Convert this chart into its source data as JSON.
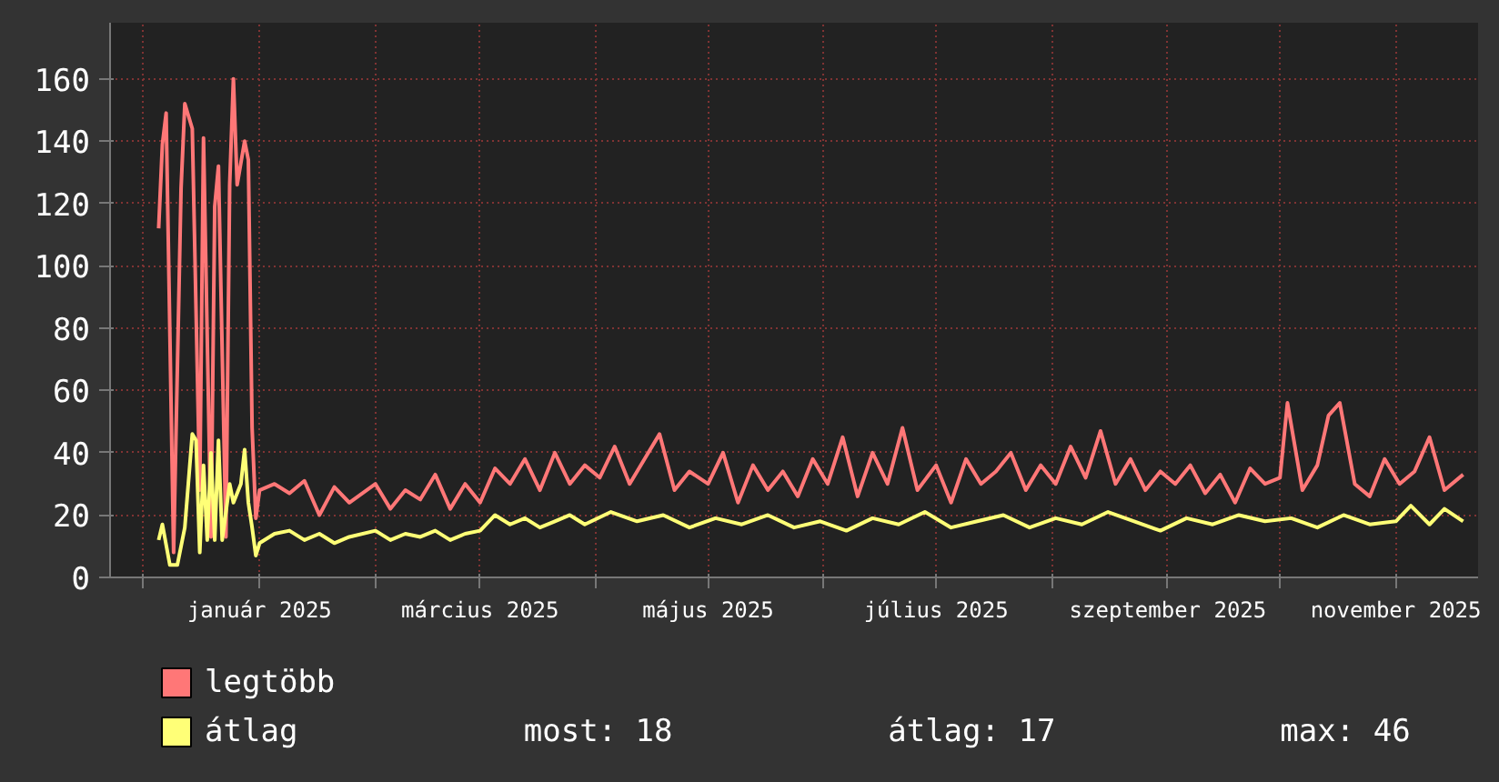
{
  "chart_data": {
    "type": "line",
    "xlim": [
      "2024-11-22",
      "2025-11-23"
    ],
    "ylim": [
      0,
      178
    ],
    "yticks": [
      0,
      20,
      40,
      60,
      80,
      100,
      120,
      140,
      160
    ],
    "xticks": [
      {
        "value": "2024-12-01",
        "label": null
      },
      {
        "value": "2025-01-01",
        "label": "január 2025"
      },
      {
        "value": "2025-02-01",
        "label": null
      },
      {
        "value": "2025-03-01",
        "label": "március 2025"
      },
      {
        "value": "2025-04-01",
        "label": null
      },
      {
        "value": "2025-05-01",
        "label": "május 2025"
      },
      {
        "value": "2025-06-01",
        "label": null
      },
      {
        "value": "2025-07-01",
        "label": "július 2025"
      },
      {
        "value": "2025-08-01",
        "label": null
      },
      {
        "value": "2025-09-01",
        "label": "szeptember 2025"
      },
      {
        "value": "2025-10-01",
        "label": null
      },
      {
        "value": "2025-11-01",
        "label": "november 2025"
      }
    ],
    "grid": true,
    "legend": "bottom",
    "marker": "none",
    "line_style": "solid",
    "series": [
      {
        "name": "legtöbb",
        "color": "#ff7777",
        "x": [
          "2024-12-05",
          "2024-12-06",
          "2024-12-07",
          "2024-12-09",
          "2024-12-11",
          "2024-12-12",
          "2024-12-14",
          "2024-12-16",
          "2024-12-17",
          "2024-12-19",
          "2024-12-20",
          "2024-12-21",
          "2024-12-23",
          "2024-12-24",
          "2024-12-25",
          "2024-12-26",
          "2024-12-28",
          "2024-12-29",
          "2024-12-30",
          "2024-12-31",
          "2025-01-01",
          "2025-01-05",
          "2025-01-09",
          "2025-01-13",
          "2025-01-17",
          "2025-01-21",
          "2025-01-25",
          "2025-02-01",
          "2025-02-05",
          "2025-02-09",
          "2025-02-13",
          "2025-02-17",
          "2025-02-21",
          "2025-02-25",
          "2025-03-01",
          "2025-03-05",
          "2025-03-09",
          "2025-03-13",
          "2025-03-17",
          "2025-03-21",
          "2025-03-25",
          "2025-03-29",
          "2025-04-02",
          "2025-04-06",
          "2025-04-10",
          "2025-04-14",
          "2025-04-18",
          "2025-04-22",
          "2025-04-26",
          "2025-05-01",
          "2025-05-05",
          "2025-05-09",
          "2025-05-13",
          "2025-05-17",
          "2025-05-21",
          "2025-05-25",
          "2025-05-29",
          "2025-06-02",
          "2025-06-06",
          "2025-06-10",
          "2025-06-14",
          "2025-06-18",
          "2025-06-22",
          "2025-06-26",
          "2025-07-01",
          "2025-07-05",
          "2025-07-09",
          "2025-07-13",
          "2025-07-17",
          "2025-07-21",
          "2025-07-25",
          "2025-07-29",
          "2025-08-02",
          "2025-08-06",
          "2025-08-10",
          "2025-08-14",
          "2025-08-18",
          "2025-08-22",
          "2025-08-26",
          "2025-08-30",
          "2025-09-03",
          "2025-09-07",
          "2025-09-11",
          "2025-09-15",
          "2025-09-19",
          "2025-09-23",
          "2025-09-27",
          "2025-10-01",
          "2025-10-03",
          "2025-10-07",
          "2025-10-11",
          "2025-10-14",
          "2025-10-17",
          "2025-10-21",
          "2025-10-25",
          "2025-10-29",
          "2025-11-02",
          "2025-11-06",
          "2025-11-10",
          "2025-11-14",
          "2025-11-19"
        ],
        "values": [
          112,
          139,
          149,
          8,
          125,
          152,
          144,
          28,
          141,
          13,
          119,
          132,
          13,
          126,
          160,
          126,
          140,
          134,
          48,
          19,
          28,
          30,
          27,
          31,
          20,
          29,
          24,
          30,
          22,
          28,
          25,
          33,
          22,
          30,
          24,
          35,
          30,
          38,
          28,
          40,
          30,
          36,
          32,
          42,
          30,
          38,
          46,
          28,
          34,
          30,
          40,
          24,
          36,
          28,
          34,
          26,
          38,
          30,
          45,
          26,
          40,
          30,
          48,
          28,
          36,
          24,
          38,
          30,
          34,
          40,
          28,
          36,
          30,
          42,
          32,
          47,
          30,
          38,
          28,
          34,
          30,
          36,
          27,
          33,
          24,
          35,
          30,
          32,
          56,
          28,
          36,
          52,
          56,
          30,
          26,
          38,
          30,
          34,
          45,
          28,
          33
        ]
      },
      {
        "name": "átlag",
        "color": "#ffff77",
        "x": [
          "2024-12-05",
          "2024-12-06",
          "2024-12-08",
          "2024-12-10",
          "2024-12-12",
          "2024-12-14",
          "2024-12-15",
          "2024-12-16",
          "2024-12-17",
          "2024-12-18",
          "2024-12-19",
          "2024-12-20",
          "2024-12-21",
          "2024-12-22",
          "2024-12-24",
          "2024-12-25",
          "2024-12-27",
          "2024-12-28",
          "2024-12-29",
          "2024-12-30",
          "2024-12-31",
          "2025-01-01",
          "2025-01-05",
          "2025-01-09",
          "2025-01-13",
          "2025-01-17",
          "2025-01-21",
          "2025-01-25",
          "2025-02-01",
          "2025-02-05",
          "2025-02-09",
          "2025-02-13",
          "2025-02-17",
          "2025-02-21",
          "2025-02-25",
          "2025-03-01",
          "2025-03-05",
          "2025-03-09",
          "2025-03-13",
          "2025-03-17",
          "2025-03-21",
          "2025-03-25",
          "2025-03-29",
          "2025-04-05",
          "2025-04-12",
          "2025-04-19",
          "2025-04-26",
          "2025-05-03",
          "2025-05-10",
          "2025-05-17",
          "2025-05-24",
          "2025-05-31",
          "2025-06-07",
          "2025-06-14",
          "2025-06-21",
          "2025-06-28",
          "2025-07-05",
          "2025-07-12",
          "2025-07-19",
          "2025-07-26",
          "2025-08-02",
          "2025-08-09",
          "2025-08-16",
          "2025-08-23",
          "2025-08-30",
          "2025-09-06",
          "2025-09-13",
          "2025-09-20",
          "2025-09-27",
          "2025-10-04",
          "2025-10-11",
          "2025-10-18",
          "2025-10-25",
          "2025-11-01",
          "2025-11-05",
          "2025-11-10",
          "2025-11-14",
          "2025-11-19"
        ],
        "values": [
          12,
          17,
          4,
          4,
          16,
          46,
          44,
          8,
          36,
          12,
          40,
          12,
          44,
          12,
          30,
          24,
          30,
          41,
          24,
          16,
          7,
          11,
          14,
          15,
          12,
          14,
          11,
          13,
          15,
          12,
          14,
          13,
          15,
          12,
          14,
          15,
          20,
          17,
          19,
          16,
          18,
          20,
          17,
          21,
          18,
          20,
          16,
          19,
          17,
          20,
          16,
          18,
          15,
          19,
          17,
          21,
          16,
          18,
          20,
          16,
          19,
          17,
          21,
          18,
          15,
          19,
          17,
          20,
          18,
          19,
          16,
          20,
          17,
          18,
          23,
          17,
          22,
          18
        ]
      }
    ],
    "annotations": [
      "most: 18",
      "átlag: 17",
      "max: 46"
    ]
  }
}
